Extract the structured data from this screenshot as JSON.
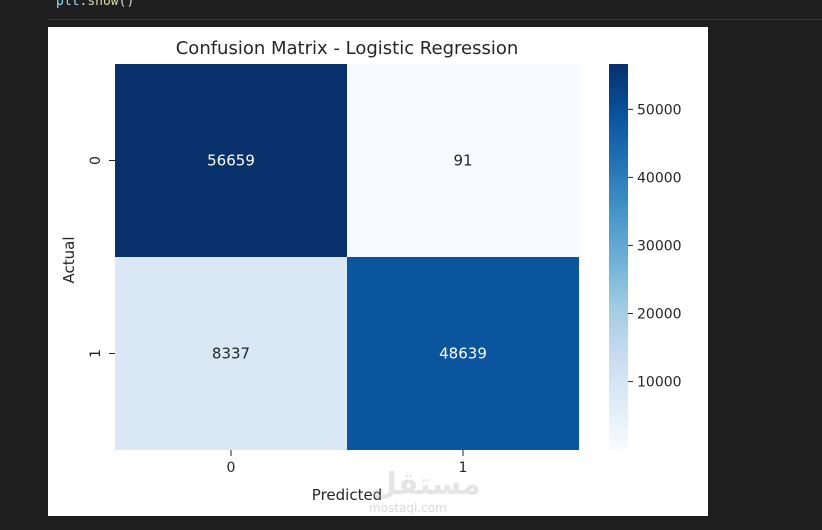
{
  "code": {
    "obj": "plt",
    "dot": ".",
    "fn": "show",
    "parens": "()"
  },
  "chart_data": {
    "type": "heatmap",
    "title": "Confusion Matrix - Logistic Regression",
    "xlabel": "Predicted",
    "ylabel": "Actual",
    "x_categories": [
      "0",
      "1"
    ],
    "y_categories": [
      "0",
      "1"
    ],
    "values": [
      [
        56659,
        91
      ],
      [
        8337,
        48639
      ]
    ],
    "colormap": "Blues",
    "colorbar": {
      "min": 91,
      "max": 56659,
      "ticks": [
        10000,
        20000,
        30000,
        40000,
        50000
      ],
      "tick_labels": [
        "10000",
        "20000",
        "30000",
        "40000",
        "50000"
      ]
    }
  },
  "watermark": {
    "main": "مستقل",
    "sub": "mostaql.com"
  }
}
